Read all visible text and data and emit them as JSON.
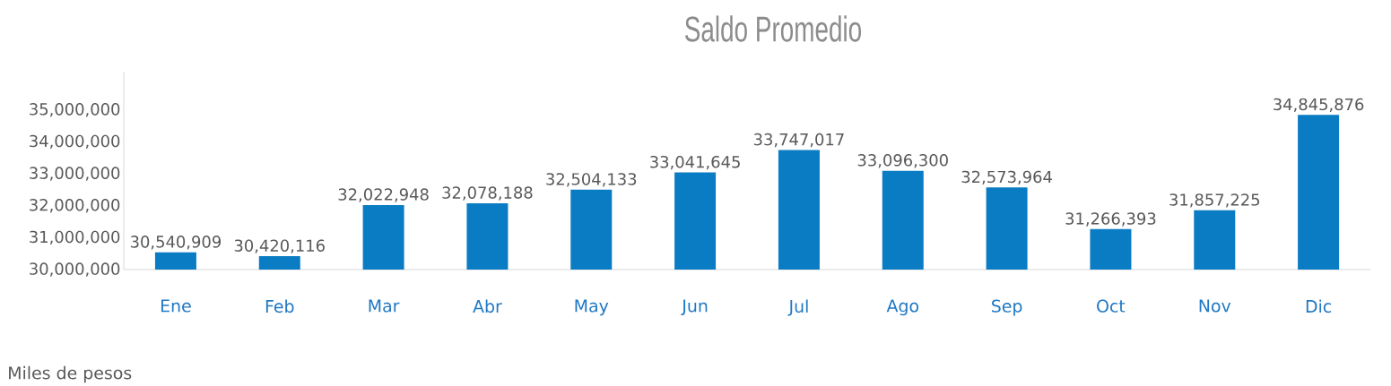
{
  "chart_data": {
    "type": "bar",
    "title": "Saldo Promedio",
    "categories": [
      "Ene",
      "Feb",
      "Mar",
      "Abr",
      "May",
      "Jun",
      "Jul",
      "Ago",
      "Sep",
      "Oct",
      "Nov",
      "Dic"
    ],
    "values": [
      30540909,
      30420116,
      32022948,
      32078188,
      32504133,
      33041645,
      33747017,
      33096300,
      32573964,
      31266393,
      31857225,
      34845876
    ],
    "value_labels": [
      "30,540,909",
      "30,420,116",
      "32,022,948",
      "32,078,188",
      "32,504,133",
      "33,041,645",
      "33,747,017",
      "33,096,300",
      "32,573,964",
      "31,266,393",
      "31,857,225",
      "34,845,876"
    ],
    "color": "#0a7cc4",
    "ylim": [
      30000000,
      36200000
    ],
    "yticks": [
      {
        "value": 30000000,
        "label": "30,000,000"
      },
      {
        "value": 31000000,
        "label": "31,000,000"
      },
      {
        "value": 32000000,
        "label": "32,000,000"
      },
      {
        "value": 33000000,
        "label": "33,000,000"
      },
      {
        "value": 34000000,
        "label": "34,000,000"
      },
      {
        "value": 35000000,
        "label": "35,000,000"
      }
    ],
    "annotations": [
      "Miles de pesos"
    ]
  }
}
